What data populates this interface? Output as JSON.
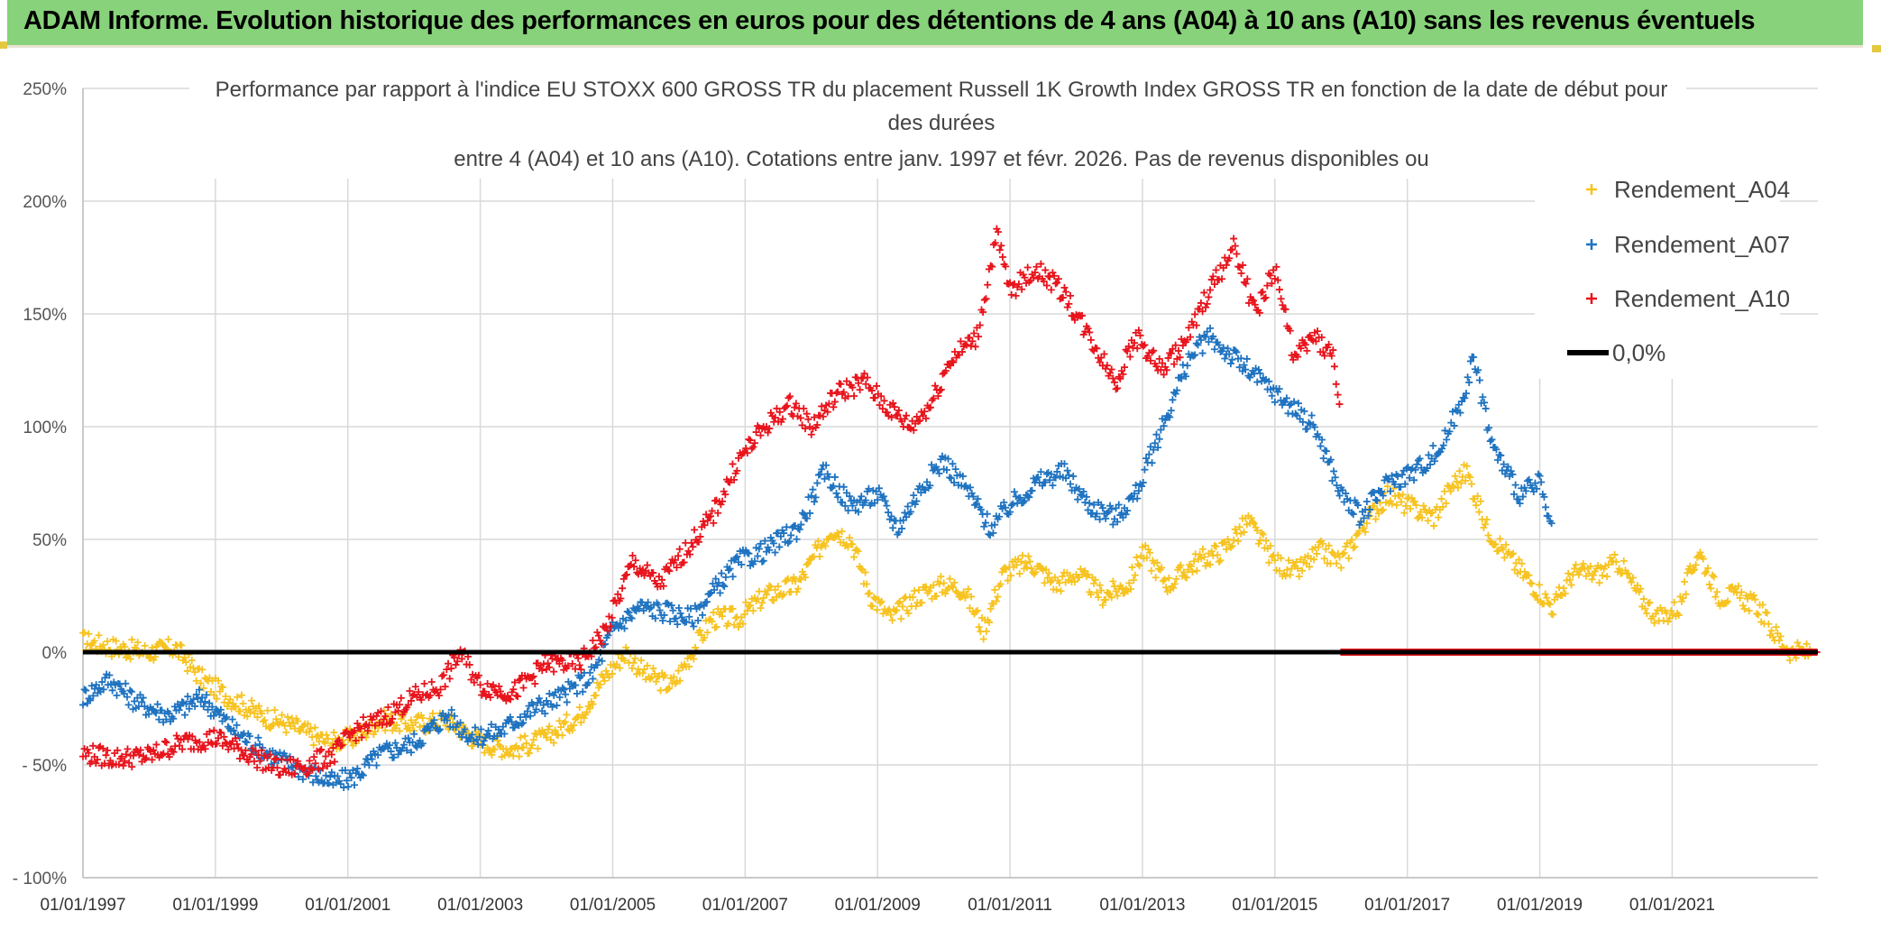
{
  "page": {
    "banner_title": "ADAM Informe. Evolution historique des performances en euros pour des détentions de 4 ans (A04) à 10 ans (A10) sans les revenus éventuels"
  },
  "chart_data": {
    "type": "scatter",
    "title_lines": [
      "Performance par rapport à l'indice EU STOXX 600 GROSS TR  du placement Russell 1K Growth Index GROSS TR en fonction de la date de début pour",
      "des durées",
      "entre 4 (A04) et 10 ans (A10). Cotations entre janv. 1997 et févr. 2026. Pas de revenus disponibles ou"
    ],
    "xlabel": "",
    "ylabel": "",
    "x_ticks": [
      "01/01/1997",
      "01/01/1999",
      "01/01/2001",
      "01/01/2003",
      "01/01/2005",
      "01/01/2007",
      "01/01/2009",
      "01/01/2011",
      "01/01/2013",
      "01/01/2015",
      "01/01/2017",
      "01/01/2019",
      "01/01/2021"
    ],
    "x_range": [
      1997.0,
      2023.2
    ],
    "y_ticks": [
      "250%",
      "200%",
      "150%",
      "100%",
      "50%",
      "0%",
      "- 50%",
      "- 100%"
    ],
    "y_range": [
      -100,
      250
    ],
    "grid": true,
    "legend_position": "right",
    "legend": [
      {
        "label": "Rendement_A04",
        "color": "#f7c320",
        "marker": "+"
      },
      {
        "label": "Rendement_A07",
        "color": "#1f73c0",
        "marker": "+"
      },
      {
        "label": "Rendement_A10",
        "color": "#e8141c",
        "marker": "+"
      },
      {
        "label": "0,0%",
        "color": "#000000",
        "marker": "line"
      }
    ],
    "series": [
      {
        "name": "Rendement_A04",
        "color": "#f7c320",
        "points": [
          [
            1997.0,
            5
          ],
          [
            1997.5,
            2
          ],
          [
            1998.0,
            0
          ],
          [
            1998.4,
            2
          ],
          [
            1998.8,
            -12
          ],
          [
            1999.2,
            -20
          ],
          [
            1999.7,
            -28
          ],
          [
            2000.2,
            -33
          ],
          [
            2000.7,
            -40
          ],
          [
            2001.1,
            -38
          ],
          [
            2001.5,
            -30
          ],
          [
            2002.0,
            -32
          ],
          [
            2002.5,
            -30
          ],
          [
            2003.0,
            -40
          ],
          [
            2003.5,
            -43
          ],
          [
            2004.0,
            -38
          ],
          [
            2004.5,
            -28
          ],
          [
            2004.9,
            -10
          ],
          [
            2005.2,
            0
          ],
          [
            2005.5,
            -10
          ],
          [
            2005.9,
            -15
          ],
          [
            2006.2,
            0
          ],
          [
            2006.5,
            15
          ],
          [
            2006.9,
            15
          ],
          [
            2007.3,
            25
          ],
          [
            2007.8,
            30
          ],
          [
            2008.3,
            55
          ],
          [
            2008.6,
            50
          ],
          [
            2008.9,
            25
          ],
          [
            2009.2,
            15
          ],
          [
            2009.6,
            25
          ],
          [
            2010.0,
            30
          ],
          [
            2010.3,
            28
          ],
          [
            2010.6,
            10
          ],
          [
            2010.9,
            35
          ],
          [
            2011.3,
            40
          ],
          [
            2011.7,
            30
          ],
          [
            2012.0,
            35
          ],
          [
            2012.4,
            25
          ],
          [
            2012.8,
            30
          ],
          [
            2013.0,
            45
          ],
          [
            2013.4,
            30
          ],
          [
            2013.8,
            40
          ],
          [
            2014.2,
            45
          ],
          [
            2014.6,
            58
          ],
          [
            2015.0,
            40
          ],
          [
            2015.3,
            35
          ],
          [
            2015.7,
            45
          ],
          [
            2016.0,
            40
          ],
          [
            2016.3,
            55
          ],
          [
            2016.7,
            70
          ],
          [
            2017.0,
            65
          ],
          [
            2017.4,
            60
          ],
          [
            2017.7,
            75
          ],
          [
            2017.9,
            80
          ],
          [
            2018.2,
            55
          ],
          [
            2018.6,
            40
          ],
          [
            2018.9,
            30
          ],
          [
            2019.2,
            20
          ],
          [
            2019.5,
            35
          ],
          [
            2019.9,
            35
          ],
          [
            2020.2,
            40
          ],
          [
            2020.5,
            25
          ],
          [
            2020.8,
            15
          ],
          [
            2021.1,
            20
          ],
          [
            2021.4,
            45
          ],
          [
            2021.7,
            25
          ],
          [
            2022.0,
            25
          ],
          [
            2022.3,
            20
          ],
          [
            2022.5,
            10
          ],
          [
            2022.8,
            0
          ],
          [
            2023.1,
            0
          ]
        ]
      },
      {
        "name": "Rendement_A07",
        "color": "#1f73c0",
        "points": [
          [
            1997.0,
            -20
          ],
          [
            1997.4,
            -12
          ],
          [
            1997.8,
            -22
          ],
          [
            1998.3,
            -28
          ],
          [
            1998.8,
            -20
          ],
          [
            1999.3,
            -35
          ],
          [
            1999.8,
            -45
          ],
          [
            2000.3,
            -52
          ],
          [
            2000.8,
            -58
          ],
          [
            2001.1,
            -55
          ],
          [
            2001.5,
            -45
          ],
          [
            2002.0,
            -40
          ],
          [
            2002.5,
            -28
          ],
          [
            2002.9,
            -38
          ],
          [
            2003.3,
            -35
          ],
          [
            2003.8,
            -25
          ],
          [
            2004.2,
            -20
          ],
          [
            2004.7,
            -10
          ],
          [
            2005.0,
            10
          ],
          [
            2005.4,
            20
          ],
          [
            2005.8,
            18
          ],
          [
            2006.2,
            15
          ],
          [
            2006.6,
            30
          ],
          [
            2006.9,
            40
          ],
          [
            2007.3,
            45
          ],
          [
            2007.8,
            55
          ],
          [
            2008.2,
            80
          ],
          [
            2008.6,
            65
          ],
          [
            2009.0,
            70
          ],
          [
            2009.3,
            55
          ],
          [
            2009.7,
            75
          ],
          [
            2010.0,
            85
          ],
          [
            2010.4,
            70
          ],
          [
            2010.7,
            55
          ],
          [
            2011.0,
            65
          ],
          [
            2011.4,
            75
          ],
          [
            2011.8,
            80
          ],
          [
            2012.2,
            65
          ],
          [
            2012.6,
            60
          ],
          [
            2012.9,
            70
          ],
          [
            2013.3,
            100
          ],
          [
            2013.7,
            130
          ],
          [
            2014.0,
            140
          ],
          [
            2014.4,
            130
          ],
          [
            2014.8,
            120
          ],
          [
            2015.2,
            110
          ],
          [
            2015.6,
            100
          ],
          [
            2016.0,
            70
          ],
          [
            2016.3,
            60
          ],
          [
            2016.7,
            75
          ],
          [
            2017.1,
            80
          ],
          [
            2017.5,
            90
          ],
          [
            2017.8,
            110
          ],
          [
            2018.0,
            130
          ],
          [
            2018.3,
            90
          ],
          [
            2018.7,
            70
          ],
          [
            2019.0,
            75
          ],
          [
            2019.2,
            50
          ]
        ]
      },
      {
        "name": "Rendement_A10",
        "color": "#e8141c",
        "points": [
          [
            1997.0,
            -45
          ],
          [
            1997.5,
            -47
          ],
          [
            1998.0,
            -46
          ],
          [
            1998.5,
            -40
          ],
          [
            1999.0,
            -38
          ],
          [
            1999.5,
            -45
          ],
          [
            2000.0,
            -52
          ],
          [
            2000.4,
            -50
          ],
          [
            2000.8,
            -45
          ],
          [
            2001.1,
            -35
          ],
          [
            2001.5,
            -30
          ],
          [
            2002.0,
            -20
          ],
          [
            2002.4,
            -15
          ],
          [
            2002.7,
            0
          ],
          [
            2003.0,
            -15
          ],
          [
            2003.5,
            -18
          ],
          [
            2004.0,
            -5
          ],
          [
            2004.5,
            -5
          ],
          [
            2004.9,
            10
          ],
          [
            2005.3,
            40
          ],
          [
            2005.7,
            30
          ],
          [
            2006.1,
            45
          ],
          [
            2006.5,
            60
          ],
          [
            2006.9,
            85
          ],
          [
            2007.3,
            100
          ],
          [
            2007.7,
            110
          ],
          [
            2008.0,
            100
          ],
          [
            2008.4,
            115
          ],
          [
            2008.8,
            120
          ],
          [
            2009.1,
            110
          ],
          [
            2009.5,
            100
          ],
          [
            2009.8,
            110
          ],
          [
            2010.1,
            130
          ],
          [
            2010.5,
            140
          ],
          [
            2010.8,
            185
          ],
          [
            2011.0,
            160
          ],
          [
            2011.4,
            170
          ],
          [
            2011.8,
            160
          ],
          [
            2012.2,
            140
          ],
          [
            2012.6,
            120
          ],
          [
            2012.9,
            140
          ],
          [
            2013.3,
            125
          ],
          [
            2013.7,
            140
          ],
          [
            2014.0,
            160
          ],
          [
            2014.4,
            180
          ],
          [
            2014.7,
            150
          ],
          [
            2015.0,
            170
          ],
          [
            2015.3,
            130
          ],
          [
            2015.6,
            140
          ],
          [
            2015.9,
            130
          ],
          [
            2016.0,
            100
          ]
        ]
      },
      {
        "name": "Rendement_A10_zero",
        "color": "#e8141c",
        "points": [
          [
            2016.0,
            0
          ],
          [
            2023.2,
            0
          ]
        ]
      }
    ],
    "reference_line": {
      "label": "0,0%",
      "y": 0,
      "color": "#000000"
    }
  }
}
